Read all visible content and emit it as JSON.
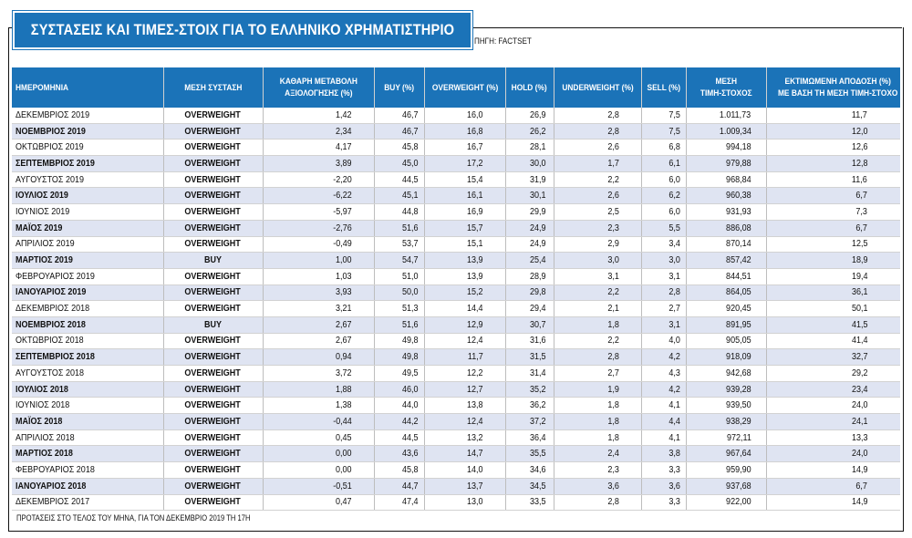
{
  "title": "ΣΥΣΤΑΣΕΙΣ ΚΑΙ ΤΙΜΕΣ-ΣΤΟΙΧ ΓΙΑ ΤΟ ΕΛΛΗΝΙΚΟ ΧΡΗΜΑΤΙΣΤΗΡΙΟ",
  "source": "ΠΗΓΗ: FACTSET",
  "footnote": "ΠΡΟΤΑΣΕΙΣ ΣΤΟ ΤΕΛΟΣ ΤΟΥ ΜΗΝΑ, ΓΙΑ ΤΟΝ ΔΕΚΕΜΒΡΙΟ 2019 ΤΗ 17Η",
  "colors": {
    "header_bg": "#1b73b8",
    "row_alt": "#dfe4f2"
  },
  "chart_data": {
    "type": "table",
    "columns": [
      [
        "ΗΜΕΡΟΜΗΝΙΑ"
      ],
      [
        "ΜΕΣΗ ΣΥΣΤΑΣΗ"
      ],
      [
        "ΚΑΘΑΡΗ ΜΕΤΑΒΟΛΗ",
        "ΑΞΙΟΛΟΓΗΣΗΣ (%)"
      ],
      [
        "BUY (%)"
      ],
      [
        "OVERWEIGHT (%)"
      ],
      [
        "HOLD (%)"
      ],
      [
        "UNDERWEIGHT (%)"
      ],
      [
        "SELL (%)"
      ],
      [
        "ΜΕΣΗ",
        "ΤΙΜΗ-ΣΤΟΧΟΣ"
      ],
      [
        "ΕΚΤΙΜΩΜΕΝΗ ΑΠΟΔΟΣΗ (%)",
        "ΜΕ ΒΑΣΗ ΤΗ ΜΕΣΗ ΤΙΜΗ-ΣΤΟΧΟ"
      ]
    ],
    "rows": [
      [
        "ΔΕΚΕΜΒΡΙΟΣ 2019",
        "OVERWEIGHT",
        "1,42",
        "46,7",
        "16,0",
        "26,9",
        "2,8",
        "7,5",
        "1.011,73",
        "11,7"
      ],
      [
        "ΝΟΕΜΒΡΙΟΣ 2019",
        "OVERWEIGHT",
        "2,34",
        "46,7",
        "16,8",
        "26,2",
        "2,8",
        "7,5",
        "1.009,34",
        "12,0"
      ],
      [
        "ΟΚΤΩΒΡΙΟΣ 2019",
        "OVERWEIGHT",
        "4,17",
        "45,8",
        "16,7",
        "28,1",
        "2,6",
        "6,8",
        "994,18",
        "12,6"
      ],
      [
        "ΣΕΠΤΕΜΒΡΙΟΣ 2019",
        "OVERWEIGHT",
        "3,89",
        "45,0",
        "17,2",
        "30,0",
        "1,7",
        "6,1",
        "979,88",
        "12,8"
      ],
      [
        "ΑΥΓΟΥΣΤΟΣ 2019",
        "OVERWEIGHT",
        "-2,20",
        "44,5",
        "15,4",
        "31,9",
        "2,2",
        "6,0",
        "968,84",
        "11,6"
      ],
      [
        "ΙΟΥΛΙΟΣ 2019",
        "OVERWEIGHT",
        "-6,22",
        "45,1",
        "16,1",
        "30,1",
        "2,6",
        "6,2",
        "960,38",
        "6,7"
      ],
      [
        "ΙΟΥΝΙΟΣ 2019",
        "OVERWEIGHT",
        "-5,97",
        "44,8",
        "16,9",
        "29,9",
        "2,5",
        "6,0",
        "931,93",
        "7,3"
      ],
      [
        "ΜΑΪΟΣ 2019",
        "OVERWEIGHT",
        "-2,76",
        "51,6",
        "15,7",
        "24,9",
        "2,3",
        "5,5",
        "886,08",
        "6,7"
      ],
      [
        "ΑΠΡΙΛΙΟΣ 2019",
        "OVERWEIGHT",
        "-0,49",
        "53,7",
        "15,1",
        "24,9",
        "2,9",
        "3,4",
        "870,14",
        "12,5"
      ],
      [
        "ΜΑΡΤΙΟΣ 2019",
        "BUY",
        "1,00",
        "54,7",
        "13,9",
        "25,4",
        "3,0",
        "3,0",
        "857,42",
        "18,9"
      ],
      [
        "ΦΕΒΡΟΥΑΡΙΟΣ 2019",
        "OVERWEIGHT",
        "1,03",
        "51,0",
        "13,9",
        "28,9",
        "3,1",
        "3,1",
        "844,51",
        "19,4"
      ],
      [
        "ΙΑΝΟΥΑΡΙΟΣ 2019",
        "OVERWEIGHT",
        "3,93",
        "50,0",
        "15,2",
        "29,8",
        "2,2",
        "2,8",
        "864,05",
        "36,1"
      ],
      [
        "ΔΕΚΕΜΒΡΙΟΣ 2018",
        "OVERWEIGHT",
        "3,21",
        "51,3",
        "14,4",
        "29,4",
        "2,1",
        "2,7",
        "920,45",
        "50,1"
      ],
      [
        "ΝΟΕΜΒΡΙΟΣ 2018",
        "BUY",
        "2,67",
        "51,6",
        "12,9",
        "30,7",
        "1,8",
        "3,1",
        "891,95",
        "41,5"
      ],
      [
        "ΟΚΤΩΒΡΙΟΣ 2018",
        "OVERWEIGHT",
        "2,67",
        "49,8",
        "12,4",
        "31,6",
        "2,2",
        "4,0",
        "905,05",
        "41,4"
      ],
      [
        "ΣΕΠΤΕΜΒΡΙΟΣ 2018",
        "OVERWEIGHT",
        "0,94",
        "49,8",
        "11,7",
        "31,5",
        "2,8",
        "4,2",
        "918,09",
        "32,7"
      ],
      [
        "ΑΥΓΟΥΣΤΟΣ 2018",
        "OVERWEIGHT",
        "3,72",
        "49,5",
        "12,2",
        "31,4",
        "2,7",
        "4,3",
        "942,68",
        "29,2"
      ],
      [
        "ΙΟΥΛΙΟΣ 2018",
        "OVERWEIGHT",
        "1,88",
        "46,0",
        "12,7",
        "35,2",
        "1,9",
        "4,2",
        "939,28",
        "23,4"
      ],
      [
        "ΙΟΥΝΙΟΣ 2018",
        "OVERWEIGHT",
        "1,38",
        "44,0",
        "13,8",
        "36,2",
        "1,8",
        "4,1",
        "939,50",
        "24,0"
      ],
      [
        "ΜΑΪΟΣ 2018",
        "OVERWEIGHT",
        "-0,44",
        "44,2",
        "12,4",
        "37,2",
        "1,8",
        "4,4",
        "938,29",
        "24,1"
      ],
      [
        "ΑΠΡΙΛΙΟΣ 2018",
        "OVERWEIGHT",
        "0,45",
        "44,5",
        "13,2",
        "36,4",
        "1,8",
        "4,1",
        "972,11",
        "13,3"
      ],
      [
        "ΜΑΡΤΙΟΣ 2018",
        "OVERWEIGHT",
        "0,00",
        "43,6",
        "14,7",
        "35,5",
        "2,4",
        "3,8",
        "967,64",
        "24,0"
      ],
      [
        "ΦΕΒΡΟΥΑΡΙΟΣ 2018",
        "OVERWEIGHT",
        "0,00",
        "45,8",
        "14,0",
        "34,6",
        "2,3",
        "3,3",
        "959,90",
        "14,9"
      ],
      [
        "ΙΑΝΟΥΑΡΙΟΣ 2018",
        "OVERWEIGHT",
        "-0,51",
        "44,7",
        "13,7",
        "34,5",
        "3,6",
        "3,6",
        "937,68",
        "6,7"
      ],
      [
        "ΔΕΚΕΜΒΡΙΟΣ 2017",
        "OVERWEIGHT",
        "0,47",
        "47,4",
        "13,0",
        "33,5",
        "2,8",
        "3,3",
        "922,00",
        "14,9"
      ]
    ]
  }
}
